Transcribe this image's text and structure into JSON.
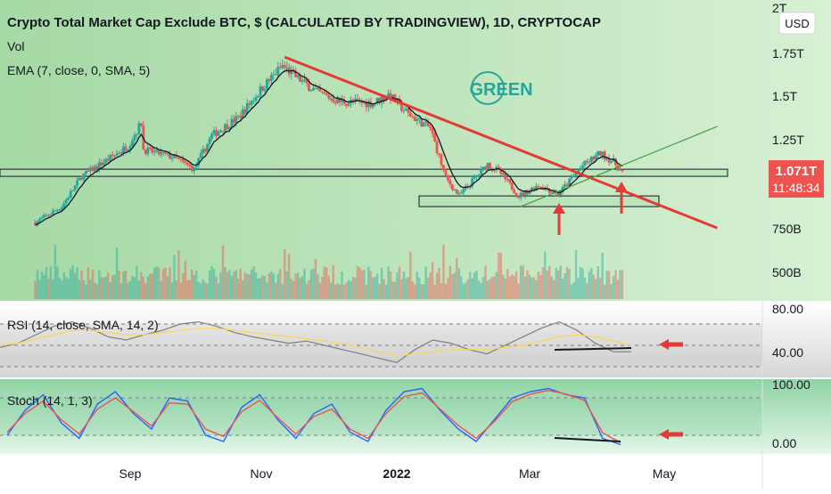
{
  "header": {
    "title": "Crypto Total Market Cap Exclude BTC, $ (CALCULATED BY TRADINGVIEW), 1D, CRYPTOCAP",
    "vol_label": "Vol",
    "ema_label": "EMA (7, close, 0, SMA, 5)",
    "currency": "USD"
  },
  "watermark": {
    "text": "GREEN",
    "color": "#26a69a"
  },
  "price_axis": {
    "ticks": [
      "2T",
      "1.75T",
      "1.5T",
      "1.25T",
      "750B",
      "500B"
    ],
    "last_price": "1.071T",
    "countdown": "11:48:34",
    "last_price_color": "#ef5350"
  },
  "rsi": {
    "label": "RSI (14, close, SMA, 14, 2)",
    "ticks": [
      "80.00",
      "40.00"
    ]
  },
  "stoch": {
    "label": "Stoch (14, 1, 3)",
    "ticks": [
      "100.00",
      "0.00"
    ]
  },
  "time_axis": {
    "labels": [
      "Sep",
      "Nov",
      "2022",
      "Mar",
      "May"
    ]
  },
  "colors": {
    "up": "#26a69a",
    "down": "#ef5350",
    "bg_green": "#b6e3b6",
    "trend_red": "#e53935",
    "trend_green": "#43a047",
    "rsi_line": "#7f7f7f",
    "rsi_ma": "#ffd54f",
    "stoch_k": "#2962ff",
    "stoch_d": "#ef5350",
    "ema": "#131722"
  },
  "chart_data": [
    {
      "type": "candlestick",
      "title": "Crypto Total Market Cap Exclude BTC, $ (CALCULATED BY TRADINGVIEW), 1D, CRYPTOCAP",
      "ylabel": "USD",
      "y_ticks": [
        "2T",
        "1.75T",
        "1.5T",
        "1.25T",
        "750B",
        "500B"
      ],
      "ylim": [
        400000000000,
        2000000000000
      ],
      "x_labels": [
        "Sep",
        "Nov",
        "2022",
        "Mar",
        "May"
      ],
      "close_series_billion": [
        {
          "date": "2021-07-20",
          "v": 790
        },
        {
          "date": "2021-08-01",
          "v": 880
        },
        {
          "date": "2021-08-10",
          "v": 1050
        },
        {
          "date": "2021-08-20",
          "v": 1130
        },
        {
          "date": "2021-08-31",
          "v": 1220
        },
        {
          "date": "2021-09-06",
          "v": 1350
        },
        {
          "date": "2021-09-07",
          "v": 1200
        },
        {
          "date": "2021-09-20",
          "v": 1160
        },
        {
          "date": "2021-09-30",
          "v": 1090
        },
        {
          "date": "2021-10-08",
          "v": 1280
        },
        {
          "date": "2021-10-20",
          "v": 1380
        },
        {
          "date": "2021-10-31",
          "v": 1550
        },
        {
          "date": "2021-11-09",
          "v": 1670
        },
        {
          "date": "2021-11-15",
          "v": 1610
        },
        {
          "date": "2021-11-25",
          "v": 1520
        },
        {
          "date": "2021-12-05",
          "v": 1470
        },
        {
          "date": "2021-12-20",
          "v": 1460
        },
        {
          "date": "2021-12-27",
          "v": 1510
        },
        {
          "date": "2022-01-05",
          "v": 1400
        },
        {
          "date": "2022-01-15",
          "v": 1320
        },
        {
          "date": "2022-01-22",
          "v": 1040
        },
        {
          "date": "2022-01-28",
          "v": 940
        },
        {
          "date": "2022-02-10",
          "v": 1120
        },
        {
          "date": "2022-02-15",
          "v": 1080
        },
        {
          "date": "2022-02-24",
          "v": 940
        },
        {
          "date": "2022-03-05",
          "v": 1000
        },
        {
          "date": "2022-03-14",
          "v": 950
        },
        {
          "date": "2022-03-25",
          "v": 1110
        },
        {
          "date": "2022-04-02",
          "v": 1180
        },
        {
          "date": "2022-04-08",
          "v": 1130
        },
        {
          "date": "2022-04-12",
          "v": 1071
        }
      ],
      "last_close": "1.071T",
      "support_zone_billion": [
        1050,
        1090
      ],
      "demand_zone_billion": [
        880,
        940
      ],
      "red_trendline": [
        {
          "date": "2021-11-10",
          "v": 1720
        },
        {
          "date": "2022-05-25",
          "v": 760
        }
      ],
      "green_trendline": [
        {
          "date": "2022-02-25",
          "v": 880
        },
        {
          "date": "2022-05-25",
          "v": 1330
        }
      ]
    },
    {
      "type": "line",
      "title": "RSI (14, close, SMA, 14, 2)",
      "ylim": [
        20,
        90
      ],
      "y_ticks": [
        "80.00",
        "40.00"
      ],
      "series": [
        {
          "values": [
            48,
            52,
            60,
            68,
            72,
            66,
            58,
            55,
            60,
            64,
            70,
            72,
            68,
            62,
            58,
            55,
            52,
            54,
            50,
            46,
            42,
            38,
            34,
            46,
            55,
            52,
            46,
            42,
            50,
            58,
            66,
            72,
            64,
            52,
            44,
            44
          ]
        },
        {
          "values": [
            50,
            52,
            56,
            60,
            64,
            64,
            62,
            60,
            60,
            62,
            64,
            66,
            66,
            64,
            62,
            60,
            58,
            56,
            54,
            52,
            48,
            44,
            40,
            42,
            44,
            46,
            46,
            46,
            48,
            50,
            54,
            58,
            60,
            58,
            54,
            50
          ]
        }
      ]
    },
    {
      "type": "line",
      "title": "Stoch (14, 1, 3)",
      "ylim": [
        -10,
        110
      ],
      "y_ticks": [
        "100.00",
        "0.00"
      ],
      "series": [
        {
          "values": [
            20,
            60,
            85,
            40,
            15,
            70,
            90,
            55,
            30,
            80,
            75,
            20,
            10,
            65,
            85,
            45,
            15,
            55,
            70,
            25,
            10,
            60,
            90,
            95,
            60,
            30,
            10,
            45,
            80,
            90,
            95,
            85,
            80,
            15,
            5
          ]
        },
        {
          "values": [
            25,
            55,
            75,
            45,
            22,
            62,
            80,
            58,
            35,
            72,
            70,
            30,
            18,
            58,
            76,
            48,
            22,
            50,
            62,
            30,
            15,
            55,
            82,
            88,
            62,
            36,
            15,
            42,
            74,
            86,
            92,
            86,
            76,
            24,
            8
          ]
        }
      ]
    }
  ]
}
